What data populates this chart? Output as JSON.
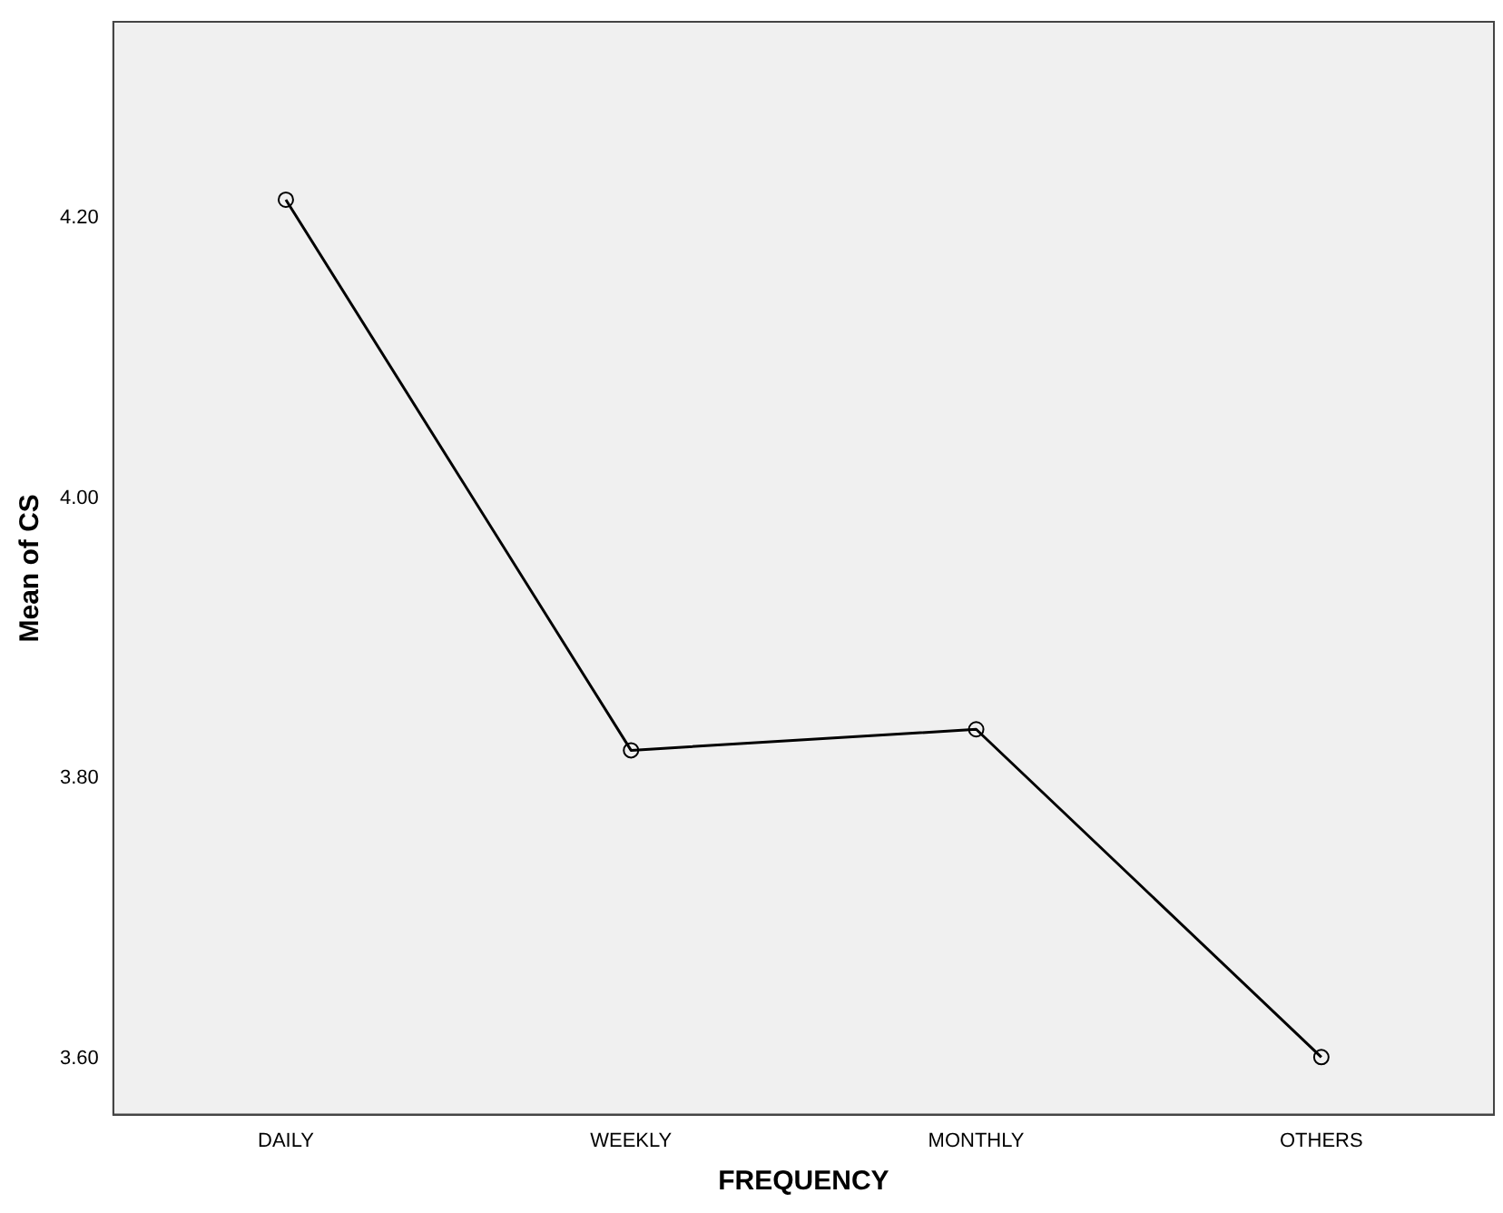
{
  "chart_data": {
    "type": "line",
    "xlabel": "FREQUENCY",
    "ylabel": "Mean of CS",
    "categories": [
      "DAILY",
      "WEEKLY",
      "MONTHLY",
      "OTHERS"
    ],
    "series": [
      {
        "color": "#000000",
        "values": [
          4.213,
          3.82,
          3.835,
          3.601
        ]
      }
    ],
    "ylim": [
      3.56,
      4.34
    ],
    "yticks": [
      {
        "value": 3.6,
        "label": "3.60"
      },
      {
        "value": 3.8,
        "label": "3.80"
      },
      {
        "value": 4.0,
        "label": "4.00"
      },
      {
        "value": 4.2,
        "label": "4.20"
      }
    ],
    "grid": false,
    "legend": false,
    "marker": "circle",
    "line_style": "solid"
  }
}
